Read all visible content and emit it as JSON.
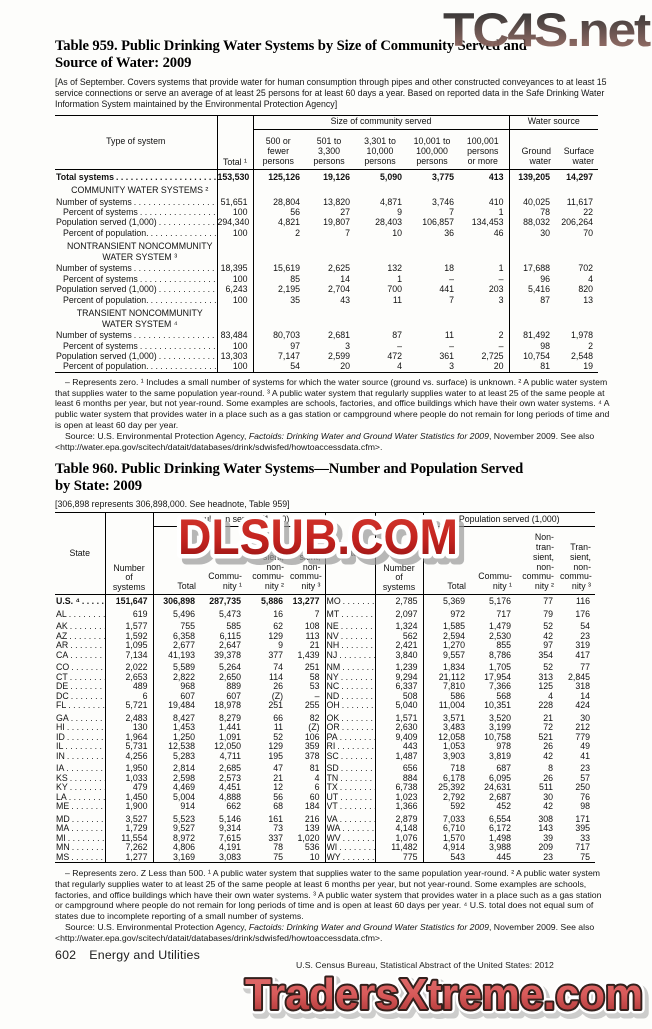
{
  "watermarks": {
    "top": "TC4S.net",
    "middle": "DLSUB.COM",
    "bottom": "TradersXtreme.com",
    "top_color_start": "#2e2e2e",
    "top_color_end": "#a3736a",
    "middle_red": "#c4231f",
    "middle_red_dark": "#8e1212",
    "bottom_fill": "#d85a5a",
    "bottom_outline": "#33201c"
  },
  "table959": {
    "title_line1": "Table 959. Public Drinking Water Systems by Size of Community Served and",
    "title_line2": "Source of Water: 2009",
    "headnote": "[As of September. Covers systems that provide water for human consumption through pipes and other constructed conveyances to at least 15 service connections or serve an average of at least 25 persons for at least 60 days a year. Based on reported data in the Safe Drinking Water Information System maintained by the Environmental Protection Agency]",
    "col_type": "Type of system",
    "col_total": "Total ¹",
    "group_size": "Size of community served",
    "group_source": "Water source",
    "size_cols": [
      "500 or\nfewer\npersons",
      "501 to\n3,300\npersons",
      "3,301 to\n10,000\npersons",
      "10,001 to\n100,000\npersons",
      "100,001\npersons\nor more"
    ],
    "source_cols": [
      "Ground\nwater",
      "Surface\nwater"
    ],
    "rows": [
      {
        "type": "total",
        "label": "Total systems",
        "values": [
          "153,530",
          "125,126",
          "19,126",
          "5,090",
          "3,775",
          "413",
          "139,205",
          "14,297"
        ]
      },
      {
        "type": "section",
        "label": "COMMUNITY WATER SYSTEMS ²"
      },
      {
        "type": "data",
        "label": "Number of systems",
        "indent": 0,
        "values": [
          "51,651",
          "28,804",
          "13,820",
          "4,871",
          "3,746",
          "410",
          "40,025",
          "11,617"
        ]
      },
      {
        "type": "data",
        "label": "Percent of systems",
        "indent": 1,
        "values": [
          "100",
          "56",
          "27",
          "9",
          "7",
          "1",
          "78",
          "22"
        ]
      },
      {
        "type": "data",
        "label": "Population served (1,000)",
        "indent": 0,
        "values": [
          "294,340",
          "4,821",
          "19,807",
          "28,403",
          "106,857",
          "134,453",
          "88,032",
          "206,264"
        ]
      },
      {
        "type": "data",
        "label": "Percent of population.",
        "indent": 1,
        "values": [
          "100",
          "2",
          "7",
          "10",
          "36",
          "46",
          "30",
          "70"
        ]
      },
      {
        "type": "section",
        "label": "NONTRANSIENT NONCOMMUNITY\nWATER SYSTEM ³"
      },
      {
        "type": "data",
        "label": "Number of systems",
        "indent": 0,
        "values": [
          "18,395",
          "15,619",
          "2,625",
          "132",
          "18",
          "1",
          "17,688",
          "702"
        ]
      },
      {
        "type": "data",
        "label": "Percent of systems",
        "indent": 1,
        "values": [
          "100",
          "85",
          "14",
          "1",
          "–",
          "–",
          "96",
          "4"
        ]
      },
      {
        "type": "data",
        "label": "Population served (1,000)",
        "indent": 0,
        "values": [
          "6,243",
          "2,195",
          "2,704",
          "700",
          "441",
          "203",
          "5,416",
          "820"
        ]
      },
      {
        "type": "data",
        "label": "Percent of population.",
        "indent": 1,
        "values": [
          "100",
          "35",
          "43",
          "11",
          "7",
          "3",
          "87",
          "13"
        ]
      },
      {
        "type": "section",
        "label": "TRANSIENT NONCOMMUNITY\nWATER SYSTEM ⁴"
      },
      {
        "type": "data",
        "label": "Number of systems",
        "indent": 0,
        "values": [
          "83,484",
          "80,703",
          "2,681",
          "87",
          "11",
          "2",
          "81,492",
          "1,978"
        ]
      },
      {
        "type": "data",
        "label": "Percent of systems",
        "indent": 1,
        "values": [
          "100",
          "97",
          "3",
          "–",
          "–",
          "–",
          "98",
          "2"
        ]
      },
      {
        "type": "data",
        "label": "Population served (1,000)",
        "indent": 0,
        "values": [
          "13,303",
          "7,147",
          "2,599",
          "472",
          "361",
          "2,725",
          "10,754",
          "2,548"
        ]
      },
      {
        "type": "data",
        "label": "Percent of population.",
        "indent": 1,
        "values": [
          "100",
          "54",
          "20",
          "4",
          "3",
          "20",
          "81",
          "19"
        ]
      }
    ],
    "footnote": "– Represents zero. ¹ Includes a small number of systems for which the water source (ground vs. surface) is unknown. ² A public water system that supplies water to the same population year-round. ³ A public water system that regularly supplies water to at least 25 of the same people at least 6 months per year, but not year-round. Some examples are schools, factories, and office buildings which have their own water systems. ⁴ A public water system that provides water in a place such as a gas station or campground where people do not remain for long periods of time and is open at least 60 day per year.",
    "source_prefix": "Source: U.S. Environmental Protection Agency, ",
    "source_italic": "Factoids: Drinking Water and Ground Water Statistics for 2009",
    "source_suffix": ", November 2009. See also <http://water.epa.gov/scitech/datait/databases/drink/sdwisfed/howtoaccessdata.cfm>."
  },
  "table960": {
    "title_line1": "Table 960. Public Drinking Water Systems—Number and Population Served",
    "title_line2": "by State: 2009",
    "bracket": "[306,898 represents 306,898,000. See headnote, Table 959]",
    "col_state": "State",
    "col_nsys": "Number\nof\nsystems",
    "pop_group": "Population served (1,000)",
    "pop_cols": [
      "Total",
      "Commu-\nnity ¹",
      "Non-\ntran-\nsient,\nnon-\ncommu-\nnity ²",
      "Tran-\nsient,\nnon-\ncommu-\nnity ³"
    ],
    "rows": [
      {
        "gap": false,
        "bold": true,
        "left": [
          "U.S. ⁴",
          "151,647",
          "306,898",
          "287,735",
          "5,886",
          "13,277"
        ],
        "right": [
          "MO",
          "2,785",
          "5,369",
          "5,176",
          "77",
          "116"
        ]
      },
      {
        "gap": true,
        "bold": false,
        "left": [
          "AL",
          "619",
          "5,496",
          "5,473",
          "16",
          "7"
        ],
        "right": [
          "MT",
          "2,097",
          "972",
          "717",
          "79",
          "176"
        ]
      },
      {
        "gap": true,
        "bold": false,
        "left": [
          "AK",
          "1,577",
          "755",
          "585",
          "62",
          "108"
        ],
        "right": [
          "NE",
          "1,324",
          "1,585",
          "1,479",
          "52",
          "54"
        ]
      },
      {
        "gap": false,
        "bold": false,
        "left": [
          "AZ",
          "1,592",
          "6,358",
          "6,115",
          "129",
          "113"
        ],
        "right": [
          "NV",
          "562",
          "2,594",
          "2,530",
          "42",
          "23"
        ]
      },
      {
        "gap": false,
        "bold": false,
        "left": [
          "AR",
          "1,095",
          "2,677",
          "2,647",
          "9",
          "21"
        ],
        "right": [
          "NH",
          "2,421",
          "1,270",
          "855",
          "97",
          "319"
        ]
      },
      {
        "gap": false,
        "bold": false,
        "left": [
          "CA",
          "7,134",
          "41,193",
          "39,378",
          "377",
          "1,439"
        ],
        "right": [
          "NJ",
          "3,840",
          "9,557",
          "8,786",
          "354",
          "417"
        ]
      },
      {
        "gap": true,
        "bold": false,
        "left": [
          "CO",
          "2,022",
          "5,589",
          "5,264",
          "74",
          "251"
        ],
        "right": [
          "NM",
          "1,239",
          "1,834",
          "1,705",
          "52",
          "77"
        ]
      },
      {
        "gap": false,
        "bold": false,
        "left": [
          "CT",
          "2,653",
          "2,822",
          "2,650",
          "114",
          "58"
        ],
        "right": [
          "NY",
          "9,294",
          "21,112",
          "17,954",
          "313",
          "2,845"
        ]
      },
      {
        "gap": false,
        "bold": false,
        "left": [
          "DE",
          "489",
          "968",
          "889",
          "26",
          "53"
        ],
        "right": [
          "NC",
          "6,337",
          "7,810",
          "7,366",
          "125",
          "318"
        ]
      },
      {
        "gap": false,
        "bold": false,
        "left": [
          "DC",
          "6",
          "607",
          "607",
          "(Z)",
          "–"
        ],
        "right": [
          "ND",
          "508",
          "586",
          "568",
          "4",
          "14"
        ]
      },
      {
        "gap": false,
        "bold": false,
        "left": [
          "FL",
          "5,721",
          "19,484",
          "18,978",
          "251",
          "255"
        ],
        "right": [
          "OH",
          "5,040",
          "11,004",
          "10,351",
          "228",
          "424"
        ]
      },
      {
        "gap": true,
        "bold": false,
        "left": [
          "GA",
          "2,483",
          "8,427",
          "8,279",
          "66",
          "82"
        ],
        "right": [
          "OK",
          "1,571",
          "3,571",
          "3,520",
          "21",
          "30"
        ]
      },
      {
        "gap": false,
        "bold": false,
        "left": [
          "HI",
          "130",
          "1,453",
          "1,441",
          "11",
          "(Z)"
        ],
        "right": [
          "OR",
          "2,630",
          "3,483",
          "3,199",
          "72",
          "212"
        ]
      },
      {
        "gap": false,
        "bold": false,
        "left": [
          "ID",
          "1,964",
          "1,250",
          "1,091",
          "52",
          "106"
        ],
        "right": [
          "PA",
          "9,409",
          "12,058",
          "10,758",
          "521",
          "779"
        ]
      },
      {
        "gap": false,
        "bold": false,
        "left": [
          "IL",
          "5,731",
          "12,538",
          "12,050",
          "129",
          "359"
        ],
        "right": [
          "RI",
          "443",
          "1,053",
          "978",
          "26",
          "49"
        ]
      },
      {
        "gap": false,
        "bold": false,
        "left": [
          "IN",
          "4,256",
          "5,283",
          "4,711",
          "195",
          "378"
        ],
        "right": [
          "SC",
          "1,487",
          "3,903",
          "3,819",
          "42",
          "41"
        ]
      },
      {
        "gap": true,
        "bold": false,
        "left": [
          "IA",
          "1,950",
          "2,814",
          "2,685",
          "47",
          "81"
        ],
        "right": [
          "SD",
          "656",
          "718",
          "687",
          "8",
          "23"
        ]
      },
      {
        "gap": false,
        "bold": false,
        "left": [
          "KS",
          "1,033",
          "2,598",
          "2,573",
          "21",
          "4"
        ],
        "right": [
          "TN",
          "884",
          "6,178",
          "6,095",
          "26",
          "57"
        ]
      },
      {
        "gap": false,
        "bold": false,
        "left": [
          "KY",
          "479",
          "4,469",
          "4,451",
          "12",
          "6"
        ],
        "right": [
          "TX",
          "6,738",
          "25,392",
          "24,631",
          "511",
          "250"
        ]
      },
      {
        "gap": false,
        "bold": false,
        "left": [
          "LA",
          "1,450",
          "5,004",
          "4,888",
          "56",
          "60"
        ],
        "right": [
          "UT",
          "1,023",
          "2,792",
          "2,687",
          "30",
          "76"
        ]
      },
      {
        "gap": false,
        "bold": false,
        "left": [
          "ME",
          "1,900",
          "914",
          "662",
          "68",
          "184"
        ],
        "right": [
          "VT",
          "1,366",
          "592",
          "452",
          "42",
          "98"
        ]
      },
      {
        "gap": true,
        "bold": false,
        "left": [
          "MD",
          "3,527",
          "5,523",
          "5,146",
          "161",
          "216"
        ],
        "right": [
          "VA",
          "2,879",
          "7,033",
          "6,554",
          "308",
          "171"
        ]
      },
      {
        "gap": false,
        "bold": false,
        "left": [
          "MA",
          "1,729",
          "9,527",
          "9,314",
          "73",
          "139"
        ],
        "right": [
          "WA",
          "4,148",
          "6,710",
          "6,172",
          "143",
          "395"
        ]
      },
      {
        "gap": false,
        "bold": false,
        "left": [
          "MI",
          "11,554",
          "8,972",
          "7,615",
          "337",
          "1,020"
        ],
        "right": [
          "WV",
          "1,076",
          "1,570",
          "1,498",
          "39",
          "33"
        ]
      },
      {
        "gap": false,
        "bold": false,
        "left": [
          "MN",
          "7,262",
          "4,806",
          "4,191",
          "78",
          "536"
        ],
        "right": [
          "WI",
          "11,482",
          "4,914",
          "3,988",
          "209",
          "717"
        ]
      },
      {
        "gap": false,
        "bold": false,
        "left": [
          "MS",
          "1,277",
          "3,169",
          "3,083",
          "75",
          "10"
        ],
        "right": [
          "WY",
          "775",
          "543",
          "445",
          "23",
          "75"
        ]
      }
    ],
    "footnote": "– Represents zero. Z Less than 500. ¹ A public water system that supplies water to the same population year-round. ² A public water system that regularly supplies water to at least 25 of the same people at least 6 months per year, but not year-round. Some examples are schools, factories, and office buildings which have their own water systems. ³ A public water system that provides water in a place such as a gas station or campground where people do not remain for long periods of time and is open at least 60 days per year. ⁴ U.S. total does not equal sum of states due to incomplete reporting of a small number of systems.",
    "source_prefix": "Source: U.S. Environmental Protection Agency, ",
    "source_italic": "Factoids: Drinking Water and Ground Water Statistics for 2009",
    "source_suffix": ", November 2009. See also <http://water.epa.gov/scitech/datait/databases/drink/sdwisfed/howtoaccessdata.cfm>."
  },
  "footer": {
    "page_number": "602",
    "section": "Energy and Utilities",
    "credit": "U.S. Census Bureau, Statistical Abstract of the United States: 2012"
  }
}
